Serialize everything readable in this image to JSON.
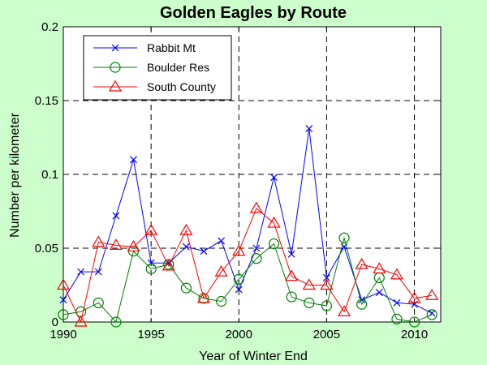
{
  "chart_data": {
    "type": "line",
    "title": "Golden Eagles by Route",
    "xlabel": "Year of Winter End",
    "ylabel": "Number per kilometer",
    "xlim": [
      1990,
      2011.5
    ],
    "ylim": [
      0,
      0.2
    ],
    "xticks": [
      1990,
      1995,
      2000,
      2005,
      2010
    ],
    "yticks": [
      0,
      0.05,
      0.1,
      0.15,
      0.2
    ],
    "xtick_labels": [
      "1990",
      "1995",
      "2000",
      "2005",
      "2010"
    ],
    "ytick_labels": [
      "0",
      "0.05",
      "0.1",
      "0.15",
      "0.2"
    ],
    "grid": "dashed",
    "legend_position": "top-left",
    "x": [
      1990,
      1991,
      1992,
      1993,
      1994,
      1995,
      1996,
      1997,
      1998,
      1999,
      2000,
      2001,
      2002,
      2003,
      2004,
      2005,
      2006,
      2007,
      2008,
      2009,
      2010,
      2011
    ],
    "series": [
      {
        "name": "Rabbit Mt",
        "color": "#0000ff",
        "marker": "x",
        "values": [
          0.015,
          0.034,
          0.034,
          0.072,
          0.11,
          0.04,
          0.04,
          0.051,
          0.048,
          0.055,
          0.022,
          0.05,
          0.098,
          0.046,
          0.131,
          0.03,
          0.051,
          0.015,
          0.02,
          0.013,
          0.012,
          0.006
        ]
      },
      {
        "name": "Boulder Res",
        "color": "#008000",
        "marker": "circle",
        "values": [
          0.005,
          0.007,
          0.013,
          0.0,
          0.048,
          0.036,
          0.039,
          0.023,
          0.016,
          0.014,
          0.029,
          0.043,
          0.053,
          0.017,
          0.013,
          0.011,
          0.057,
          0.012,
          0.03,
          0.002,
          0.0,
          0.005
        ]
      },
      {
        "name": "South County",
        "color": "#ff0000",
        "marker": "triangle",
        "values": [
          0.025,
          0.0,
          0.054,
          0.052,
          0.051,
          0.062,
          0.038,
          0.062,
          0.016,
          0.034,
          0.048,
          0.077,
          0.067,
          0.031,
          0.025,
          0.025,
          0.007,
          0.039,
          0.036,
          0.032,
          0.016,
          0.018
        ]
      }
    ]
  }
}
